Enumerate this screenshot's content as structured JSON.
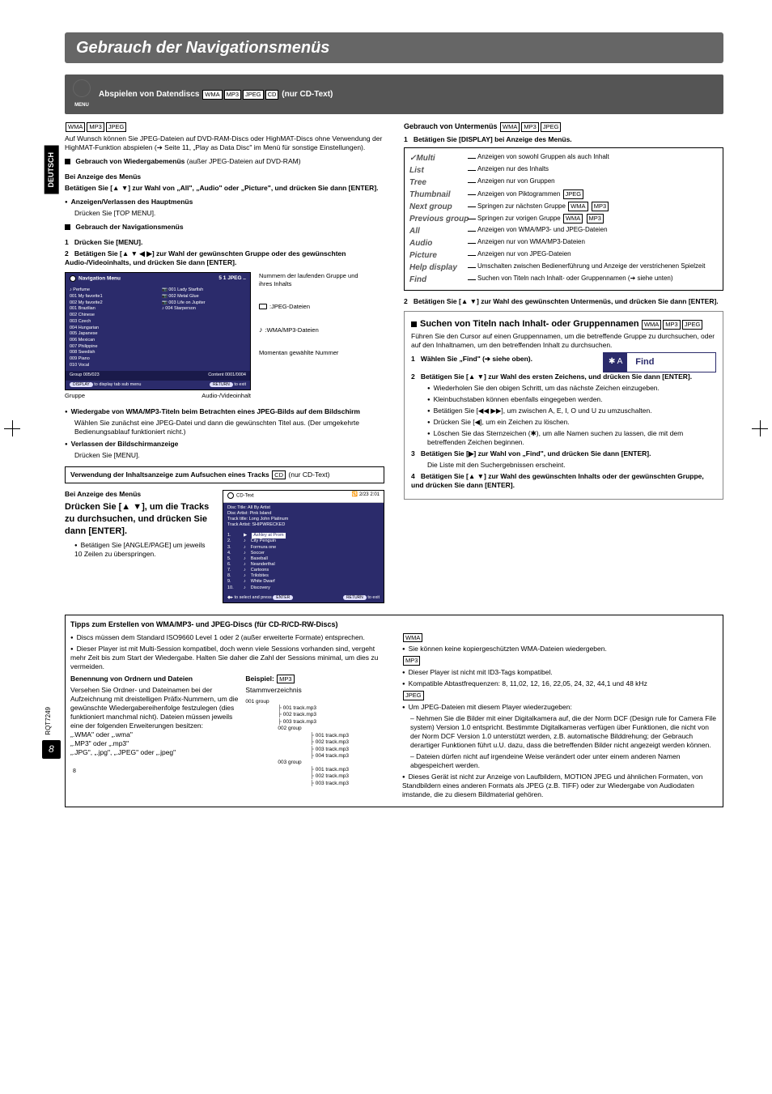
{
  "page": {
    "title": "Gebrauch der Navigationsmenüs",
    "side_tab": "DEUTSCH",
    "page_number": "8",
    "rqt": "RQT7249",
    "small8": "8",
    "menu_icon_label": "MENU"
  },
  "subheader": {
    "text": "Abspielen von Datendiscs",
    "suffix": "(nur CD-Text)",
    "formats": [
      "WMA",
      "MP3",
      "JPEG",
      "CD"
    ]
  },
  "left": {
    "formats_line": [
      "WMA",
      "MP3",
      "JPEG"
    ],
    "intro1": "Auf Wunsch können Sie JPEG-Dateien auf DVD-RAM-Discs oder HighMAT-Discs ohne Verwendung der HighMAT-Funktion abspielen (➔ Seite 11, „Play as Data Disc\" im Menü für sonstige Einstellungen).",
    "wiedergabe_title": "Gebrauch von Wiedergabemenüs",
    "wiedergabe_sub": "(außer JPEG-Dateien auf DVD-RAM)",
    "bei_anzeige": "Bei Anzeige des Menüs",
    "betatigen1": "Betätigen Sie [▲ ▼] zur Wahl von „All\", „Audio\" oder „Picture\", und drücken Sie dann [ENTER].",
    "anzeigen_haupt": "Anzeigen/Verlassen des Hauptmenüs",
    "drucken_top": "Drücken Sie [TOP MENU].",
    "nav_title": "Gebrauch der Navigationsmenüs",
    "step1": "Drücken Sie [MENU].",
    "step2": "Betätigen Sie [▲ ▼ ◀ ▶] zur Wahl der gewünschten Gruppe oder des gewünschten Audio-/Videoinhalts, und drücken Sie dann [ENTER].",
    "diag_labels": {
      "num_group": "Nummern der laufenden Gruppe und ihres Inhalts",
      "jpeg_files": ":JPEG-Dateien",
      "wma_files": ":WMA/MP3-Dateien",
      "current_num": "Momentan gewählte Nummer"
    },
    "nav_menu": {
      "header": "Navigation  Menu",
      "hdr_right": "5       1      JPEG    ..",
      "left_title": "Perfume",
      "left_items": [
        "001 My favorite1",
        "002 My favorite2",
        "001 Brazilian",
        "002 Chinese",
        "003 Czech",
        "004 Hungarian",
        "005 Japanese",
        "006 Mexican",
        "007 Philippine",
        "008 Swedish",
        "009 Piano",
        "010 Vocal"
      ],
      "right_items": [
        "001 Lady Starfish",
        "002 Metal Glue",
        "003 Life on Jupiter",
        "004 Starperson"
      ],
      "foot_group": "Group  005/023",
      "foot_content": "Content  0001/0004",
      "foot2_left": "to  display  tab  sub  menu",
      "foot2_left_btn": "DISPLAY",
      "foot2_right": "to  exit",
      "foot2_right_btn": "RETURN",
      "bottom_left_label": "Gruppe",
      "bottom_right_label": "Audio-/Videoinhalt"
    },
    "wiedergabe_wma_title": "Wiedergabe von WMA/MP3-Titeln beim Betrachten eines JPEG-Bilds auf dem Bildschirm",
    "wiedergabe_wma_text": "Wählen Sie zunächst eine JPEG-Datei und dann die gewünschten Titel aus. (Der umgekehrte Bedienungsablauf funktioniert nicht.)",
    "verlassen_title": "Verlassen der Bildschirmanzeige",
    "verlassen_text": "Drücken Sie [MENU].",
    "track_box": {
      "line1": "Verwendung der Inhaltsanzeige zum Aufsuchen eines Tracks",
      "fmt": "CD",
      "suffix": "(nur CD-Text)"
    },
    "cd_section": {
      "bei_anzeige": "Bei Anzeige des Menüs",
      "instruction": "Drücken Sie [▲ ▼], um die Tracks zu durchsuchen, und drücken Sie dann [ENTER].",
      "note": "Betätigen Sie [ANGLE/PAGE] um jeweils 10 Zeilen zu überspringen."
    },
    "cd_text": {
      "header_left": "CD-Text",
      "header_right": "2/23    2:01",
      "info": [
        "Disc Title:    All By Artist",
        "Disc Artist:   Pink Island",
        "Track title:   Long John Platinum",
        "Track Artist: SHIPWRECKED"
      ],
      "tracks": [
        {
          "n": "1.",
          "m": "▶",
          "name": "Ashley at Prom"
        },
        {
          "n": "2.",
          "m": "♪",
          "name": "City Penguin"
        },
        {
          "n": "3.",
          "m": "♪",
          "name": "Formura one"
        },
        {
          "n": "4.",
          "m": "♪",
          "name": "Soccer"
        },
        {
          "n": "5.",
          "m": "♪",
          "name": "Baseball"
        },
        {
          "n": "6.",
          "m": "♪",
          "name": "Neanderthal"
        },
        {
          "n": "7.",
          "m": "♪",
          "name": "Cartoons"
        },
        {
          "n": "8.",
          "m": "♪",
          "name": "Trilobites"
        },
        {
          "n": "9.",
          "m": "♪",
          "name": "White Dwarf"
        },
        {
          "n": "10.",
          "m": "♪",
          "name": "Discovery"
        }
      ],
      "foot_left": "to  select  and  press",
      "foot_left_btn": "ENTER",
      "foot_right_btn": "RETURN",
      "foot_right": "to  exit"
    }
  },
  "right": {
    "submenu_hdr": "Gebrauch von Untermenüs",
    "submenu_fmts": [
      "WMA",
      "MP3",
      "JPEG"
    ],
    "step1": "Betätigen Sie [DISPLAY] bei Anzeige des Menüs.",
    "items": [
      {
        "key": "Multi",
        "val": "Anzeigen von sowohl Gruppen als auch Inhalt",
        "pre": "✓"
      },
      {
        "key": "List",
        "val": "Anzeigen nur des Inhalts"
      },
      {
        "key": "Tree",
        "val": "Anzeigen nur von Gruppen"
      },
      {
        "key": "Thumbnail",
        "val": "Anzeigen von Piktogrammen",
        "fmts": [
          "JPEG"
        ]
      },
      {
        "key": "Next group",
        "val": "Springen zur nächsten Gruppe",
        "fmts": [
          "WMA",
          "MP3"
        ]
      },
      {
        "key": "Previous group",
        "val": "Springen zur vorigen Gruppe",
        "fmts": [
          "WMA",
          "MP3"
        ]
      },
      {
        "key": "All",
        "val": "Anzeigen von WMA/MP3- und JPEG-Dateien"
      },
      {
        "key": "Audio",
        "val": "Anzeigen nur von WMA/MP3-Dateien"
      },
      {
        "key": "Picture",
        "val": "Anzeigen nur von JPEG-Dateien"
      },
      {
        "key": "Help display",
        "val": "Umschalten zwischen Bedienerführung und Anzeige der verstrichenen Spielzeit"
      },
      {
        "key": "Find",
        "val": "Suchen von Titeln nach Inhalt- oder Gruppennamen (➔ siehe unten)"
      }
    ],
    "step2": "Betätigen Sie [▲ ▼] zur Wahl des gewünschten Untermenüs, und drücken Sie dann [ENTER].",
    "find": {
      "title_pre": "Suchen von Titeln nach Inhalt- oder Gruppennamen",
      "fmts": [
        "WMA",
        "MP3",
        "JPEG"
      ],
      "intro": "Führen Sie den Cursor auf einen Gruppennamen, um die betreffende Gruppe zu durchsuchen, oder auf den Inhaltnamen, um den betreffenden Inhalt zu durchsuchen.",
      "s1": "Wählen Sie  „Find\" (➔ siehe oben).",
      "ui_left": "✱ A",
      "ui_right": "Find",
      "s2": "Betätigen Sie [▲ ▼] zur Wahl des ersten Zeichens, und drücken Sie dann [ENTER].",
      "b1": "Wiederholen Sie den obigen Schritt, um das nächste Zeichen einzugeben.",
      "b2": "Kleinbuchstaben können ebenfalls eingegeben werden.",
      "b3": "Betätigen Sie [◀◀ ▶▶], um zwischen A, E, I, O und U zu umzuschalten.",
      "b4": "Drücken Sie [◀], um ein Zeichen zu löschen.",
      "b5": "Löschen Sie das Sternzeichen (✱), um alle Namen suchen zu lassen, die mit dem betreffenden Zeichen beginnen.",
      "s3": "Betätigen Sie [▶] zur Wahl von „Find\", und drücken Sie dann [ENTER].",
      "s3_sub": "Die Liste mit den Suchergebnissen erscheint.",
      "s4": "Betätigen Sie [▲ ▼] zur Wahl des gewünschten Inhalts oder der gewünschten Gruppe, und drücken Sie dann [ENTER]."
    }
  },
  "tips": {
    "title": "Tipps zum Erstellen von WMA/MP3- und JPEG-Discs (für CD-R/CD-RW-Discs)",
    "l1": "Discs müssen dem Standard ISO9660 Level 1 oder 2 (außer erweiterte Formate) entsprechen.",
    "l2": "Dieser Player ist mit Multi-Session kompatibel, doch wenn viele Sessions vorhanden sind, vergeht mehr Zeit bis zum Start der Wiedergabe. Halten Sie daher die Zahl der Sessions minimal, um dies zu vermeiden.",
    "naming_hdr": "Benennung von Ordnern und Dateien",
    "naming_text": "Versehen Sie Ordner- und Dateinamen bei der Aufzeichnung mit dreistelligen Präfix-Nummern, um die gewünschte Wiedergabereihenfolge festzulegen (dies funktioniert manchmal nicht). Dateien müssen jeweils eine der folgenden Erweiterungen besitzen:\n„.WMA\" oder „.wma\"\n„.MP3\" oder „.mp3\"\n„.JPG\", „.jpg\", „.JPEG\" oder „.jpeg\"",
    "beispiel": "Beispiel:",
    "beispiel_fmt": "MP3",
    "stamm": "Stammverzeichnis",
    "tree": {
      "g1": "001 group",
      "g1_files": [
        "001 track.mp3",
        "002 track.mp3",
        "003 track.mp3"
      ],
      "g2": "002 group",
      "g2_files": [
        "001 track.mp3",
        "002 track.mp3",
        "003 track.mp3",
        "004 track.mp3"
      ],
      "g3": "003 group",
      "g3_files": [
        "001 track.mp3",
        "002 track.mp3",
        "003 track.mp3"
      ]
    },
    "r_wma_fmt": "WMA",
    "r_wma": "Sie können keine kopiergeschützten WMA-Dateien wiedergeben.",
    "r_mp3_fmt": "MP3",
    "r_mp3_1": "Dieser Player ist nicht mit ID3-Tags kompatibel.",
    "r_mp3_2": "Kompatible Abtastfrequenzen: 8, 11,02, 12, 16, 22,05, 24, 32, 44,1 und 48 kHz",
    "r_jpeg_fmt": "JPEG",
    "r_jpeg_1": "Um JPEG-Dateien mit diesem Player wiederzugeben:",
    "r_jpeg_2": "Nehmen Sie die Bilder mit einer Digitalkamera auf, die der Norm DCF (Design rule for Camera File system) Version 1.0 entspricht. Bestimmte Digitalkameras verfügen über Funktionen, die nicht von der Norm DCF Version 1.0 unterstützt werden, z.B. automatische Bilddrehung; der Gebrauch derartiger Funktionen führt u.U. dazu, dass die betreffenden Bilder nicht angezeigt werden können.",
    "r_jpeg_3": "Dateien dürfen nicht auf irgendeine Weise verändert oder unter einem anderen Namen abgespeichert werden.",
    "r_jpeg_4": "Dieses Gerät ist nicht zur Anzeige von Laufbildern, MOTION JPEG und ähnlichen Formaten, von Standbildern eines anderen Formats als JPEG (z.B. TIFF) oder zur Wiedergabe von Audiodaten imstande, die zu diesem Bildmaterial gehören."
  }
}
